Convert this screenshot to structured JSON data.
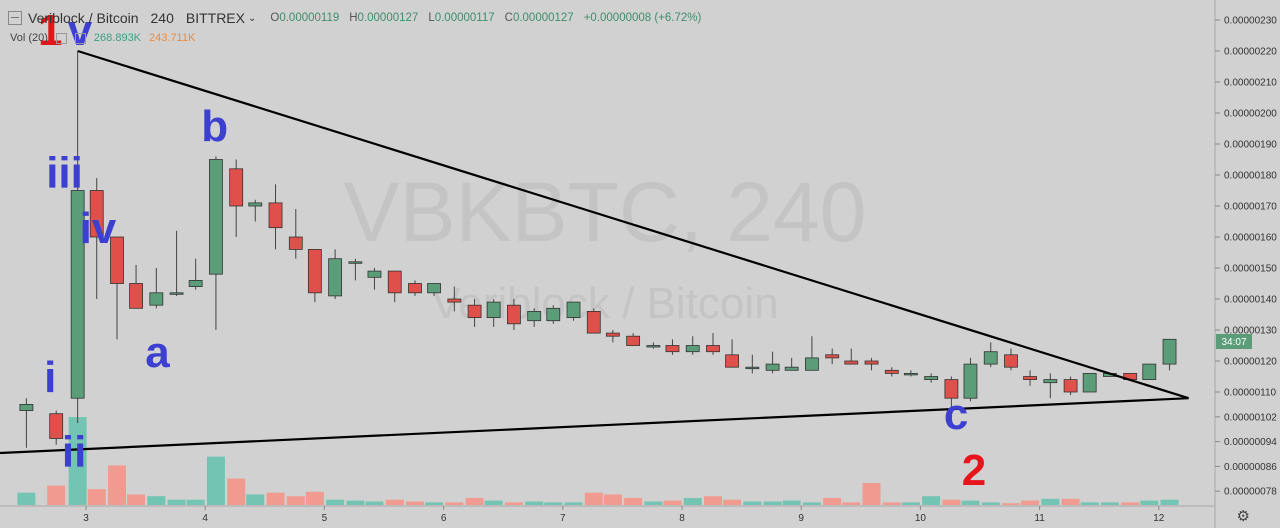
{
  "header": {
    "symbol": "Veriblock / Bitcoin",
    "interval": "240",
    "exchange": "BITTREX",
    "open_label": "O",
    "open": "0.00000119",
    "high_label": "H",
    "high": "0.00000127",
    "low_label": "L",
    "low": "0.00000117",
    "close_label": "C",
    "close": "0.00000127",
    "change": "+0.00000008 (+6.72%)"
  },
  "volume_legend": {
    "label": "Vol (20)",
    "value1": "268.893K",
    "value2": "243.711K"
  },
  "watermark": {
    "ticker": "VBKBTC, 240",
    "name": "Veriblock / Bitcoin"
  },
  "price_tag": "34:07",
  "colors": {
    "up": "#5a9d78",
    "down": "#e0504a",
    "vol_up": "#74c4b4",
    "vol_down": "#f19a8f",
    "background": "#d1d1d1",
    "wave_blue": "#3c3fd0",
    "wave_red": "#e8141c"
  },
  "icons": {
    "collapse": "collapse-icon",
    "settings": "gear-icon"
  },
  "chart_data": {
    "type": "candlestick",
    "ylim": [
      7.5e-07,
      2.34e-06
    ],
    "y_ticks": [
      "0.00000230",
      "0.00000220",
      "0.00000210",
      "0.00000200",
      "0.00000190",
      "0.00000180",
      "0.00000170",
      "0.00000160",
      "0.00000150",
      "0.00000140",
      "0.00000130",
      "0.00000120",
      "0.00000110",
      "0.00000102",
      "0.00000094",
      "0.00000086",
      "0.00000078"
    ],
    "x_ticks": [
      "3",
      "4",
      "5",
      "6",
      "7",
      "8",
      "9",
      "10",
      "11",
      "12"
    ],
    "candles": [
      {
        "t": 2.0,
        "o": 1.09,
        "h": 1.15,
        "l": 1.06,
        "c": 1.15
      },
      {
        "t": 2.5,
        "o": 1.04,
        "h": 1.08,
        "l": 0.92,
        "c": 1.06
      },
      {
        "t": 2.75,
        "o": 1.03,
        "h": 1.04,
        "l": 0.93,
        "c": 0.95
      },
      {
        "t": 2.93,
        "o": 1.08,
        "h": 2.2,
        "l": 1.0,
        "c": 1.75
      },
      {
        "t": 3.09,
        "o": 1.75,
        "h": 1.79,
        "l": 1.4,
        "c": 1.6
      },
      {
        "t": 3.26,
        "o": 1.6,
        "h": 1.6,
        "l": 1.27,
        "c": 1.45
      },
      {
        "t": 3.42,
        "o": 1.45,
        "h": 1.51,
        "l": 1.37,
        "c": 1.37
      },
      {
        "t": 3.59,
        "o": 1.38,
        "h": 1.5,
        "l": 1.37,
        "c": 1.42
      },
      {
        "t": 3.76,
        "o": 1.42,
        "h": 1.62,
        "l": 1.41,
        "c": 1.42
      },
      {
        "t": 3.92,
        "o": 1.44,
        "h": 1.53,
        "l": 1.43,
        "c": 1.46
      },
      {
        "t": 4.09,
        "o": 1.48,
        "h": 1.86,
        "l": 1.3,
        "c": 1.85
      },
      {
        "t": 4.26,
        "o": 1.82,
        "h": 1.85,
        "l": 1.6,
        "c": 1.7
      },
      {
        "t": 4.42,
        "o": 1.7,
        "h": 1.72,
        "l": 1.65,
        "c": 1.71
      },
      {
        "t": 4.59,
        "o": 1.71,
        "h": 1.77,
        "l": 1.56,
        "c": 1.63
      },
      {
        "t": 4.76,
        "o": 1.6,
        "h": 1.69,
        "l": 1.53,
        "c": 1.56
      },
      {
        "t": 4.92,
        "o": 1.56,
        "h": 1.56,
        "l": 1.39,
        "c": 1.42
      },
      {
        "t": 5.09,
        "o": 1.41,
        "h": 1.56,
        "l": 1.4,
        "c": 1.53
      },
      {
        "t": 5.26,
        "o": 1.52,
        "h": 1.53,
        "l": 1.46,
        "c": 1.52
      },
      {
        "t": 5.42,
        "o": 1.47,
        "h": 1.5,
        "l": 1.43,
        "c": 1.49
      },
      {
        "t": 5.59,
        "o": 1.49,
        "h": 1.49,
        "l": 1.39,
        "c": 1.42
      },
      {
        "t": 5.76,
        "o": 1.45,
        "h": 1.46,
        "l": 1.41,
        "c": 1.42
      },
      {
        "t": 5.92,
        "o": 1.42,
        "h": 1.45,
        "l": 1.41,
        "c": 1.45
      },
      {
        "t": 6.09,
        "o": 1.4,
        "h": 1.44,
        "l": 1.36,
        "c": 1.39
      },
      {
        "t": 6.26,
        "o": 1.38,
        "h": 1.4,
        "l": 1.31,
        "c": 1.34
      },
      {
        "t": 6.42,
        "o": 1.34,
        "h": 1.4,
        "l": 1.31,
        "c": 1.39
      },
      {
        "t": 6.59,
        "o": 1.38,
        "h": 1.4,
        "l": 1.3,
        "c": 1.32
      },
      {
        "t": 6.76,
        "o": 1.33,
        "h": 1.37,
        "l": 1.31,
        "c": 1.36
      },
      {
        "t": 6.92,
        "o": 1.33,
        "h": 1.38,
        "l": 1.32,
        "c": 1.37
      },
      {
        "t": 7.09,
        "o": 1.34,
        "h": 1.39,
        "l": 1.33,
        "c": 1.39
      },
      {
        "t": 7.26,
        "o": 1.36,
        "h": 1.37,
        "l": 1.29,
        "c": 1.29
      },
      {
        "t": 7.42,
        "o": 1.29,
        "h": 1.3,
        "l": 1.26,
        "c": 1.28
      },
      {
        "t": 7.59,
        "o": 1.28,
        "h": 1.29,
        "l": 1.25,
        "c": 1.25
      },
      {
        "t": 7.76,
        "o": 1.25,
        "h": 1.26,
        "l": 1.24,
        "c": 1.25
      },
      {
        "t": 7.92,
        "o": 1.25,
        "h": 1.27,
        "l": 1.22,
        "c": 1.23
      },
      {
        "t": 8.09,
        "o": 1.23,
        "h": 1.28,
        "l": 1.22,
        "c": 1.25
      },
      {
        "t": 8.26,
        "o": 1.25,
        "h": 1.29,
        "l": 1.22,
        "c": 1.23
      },
      {
        "t": 8.42,
        "o": 1.22,
        "h": 1.27,
        "l": 1.18,
        "c": 1.18
      },
      {
        "t": 8.59,
        "o": 1.18,
        "h": 1.22,
        "l": 1.16,
        "c": 1.18
      },
      {
        "t": 8.76,
        "o": 1.17,
        "h": 1.23,
        "l": 1.16,
        "c": 1.19
      },
      {
        "t": 8.92,
        "o": 1.17,
        "h": 1.21,
        "l": 1.17,
        "c": 1.18
      },
      {
        "t": 9.09,
        "o": 1.17,
        "h": 1.28,
        "l": 1.17,
        "c": 1.21
      },
      {
        "t": 9.26,
        "o": 1.22,
        "h": 1.24,
        "l": 1.19,
        "c": 1.21
      },
      {
        "t": 9.42,
        "o": 1.2,
        "h": 1.24,
        "l": 1.19,
        "c": 1.19
      },
      {
        "t": 9.59,
        "o": 1.2,
        "h": 1.21,
        "l": 1.17,
        "c": 1.19
      },
      {
        "t": 9.76,
        "o": 1.17,
        "h": 1.18,
        "l": 1.15,
        "c": 1.16
      },
      {
        "t": 9.92,
        "o": 1.16,
        "h": 1.17,
        "l": 1.15,
        "c": 1.16
      },
      {
        "t": 10.09,
        "o": 1.14,
        "h": 1.16,
        "l": 1.13,
        "c": 1.15
      },
      {
        "t": 10.26,
        "o": 1.14,
        "h": 1.15,
        "l": 1.05,
        "c": 1.08
      },
      {
        "t": 10.42,
        "o": 1.08,
        "h": 1.21,
        "l": 1.07,
        "c": 1.19
      },
      {
        "t": 10.59,
        "o": 1.19,
        "h": 1.26,
        "l": 1.18,
        "c": 1.23
      },
      {
        "t": 10.76,
        "o": 1.22,
        "h": 1.24,
        "l": 1.17,
        "c": 1.18
      },
      {
        "t": 10.92,
        "o": 1.15,
        "h": 1.17,
        "l": 1.12,
        "c": 1.14
      },
      {
        "t": 11.09,
        "o": 1.13,
        "h": 1.16,
        "l": 1.08,
        "c": 1.14
      },
      {
        "t": 11.26,
        "o": 1.14,
        "h": 1.15,
        "l": 1.09,
        "c": 1.1
      },
      {
        "t": 11.42,
        "o": 1.1,
        "h": 1.16,
        "l": 1.1,
        "c": 1.16
      },
      {
        "t": 11.59,
        "o": 1.15,
        "h": 1.16,
        "l": 1.15,
        "c": 1.16
      },
      {
        "t": 11.76,
        "o": 1.16,
        "h": 1.16,
        "l": 1.14,
        "c": 1.14
      },
      {
        "t": 11.92,
        "o": 1.14,
        "h": 1.19,
        "l": 1.14,
        "c": 1.19
      },
      {
        "t": 12.09,
        "o": 1.19,
        "h": 1.27,
        "l": 1.17,
        "c": 1.27
      }
    ],
    "volume_relative": [
      0.35,
      0.14,
      0.22,
      1.0,
      0.18,
      0.45,
      0.12,
      0.1,
      0.06,
      0.06,
      0.55,
      0.3,
      0.12,
      0.14,
      0.1,
      0.15,
      0.06,
      0.05,
      0.04,
      0.06,
      0.04,
      0.03,
      0.03,
      0.08,
      0.05,
      0.03,
      0.04,
      0.03,
      0.03,
      0.14,
      0.12,
      0.08,
      0.04,
      0.05,
      0.08,
      0.1,
      0.06,
      0.04,
      0.04,
      0.05,
      0.03,
      0.08,
      0.03,
      0.25,
      0.03,
      0.03,
      0.1,
      0.06,
      0.05,
      0.03,
      0.02,
      0.05,
      0.07,
      0.07,
      0.03,
      0.03,
      0.03,
      0.05,
      0.06
    ],
    "trendlines": [
      {
        "from": [
          2.93,
          2.2
        ],
        "to": [
          12.25,
          1.08
        ]
      },
      {
        "from": [
          2.1,
          0.9
        ],
        "to": [
          12.25,
          1.08
        ]
      }
    ],
    "wave_labels": [
      {
        "text": "1",
        "color": "red",
        "t": 2.7,
        "p": 2.22
      },
      {
        "text": "v",
        "color": "blue",
        "t": 2.95,
        "p": 2.22
      },
      {
        "text": "i",
        "color": "blue",
        "t": 2.7,
        "p": 1.1
      },
      {
        "text": "ii",
        "color": "blue",
        "t": 2.9,
        "p": 0.86
      },
      {
        "text": "iii",
        "color": "blue",
        "t": 2.82,
        "p": 1.76
      },
      {
        "text": "iv",
        "color": "blue",
        "t": 3.1,
        "p": 1.58
      },
      {
        "text": "a",
        "color": "blue",
        "t": 3.6,
        "p": 1.18
      },
      {
        "text": "b",
        "color": "blue",
        "t": 4.08,
        "p": 1.91
      },
      {
        "text": "c",
        "color": "blue",
        "t": 10.3,
        "p": 0.98
      },
      {
        "text": "2",
        "color": "red",
        "t": 10.45,
        "p": 0.8
      }
    ]
  }
}
